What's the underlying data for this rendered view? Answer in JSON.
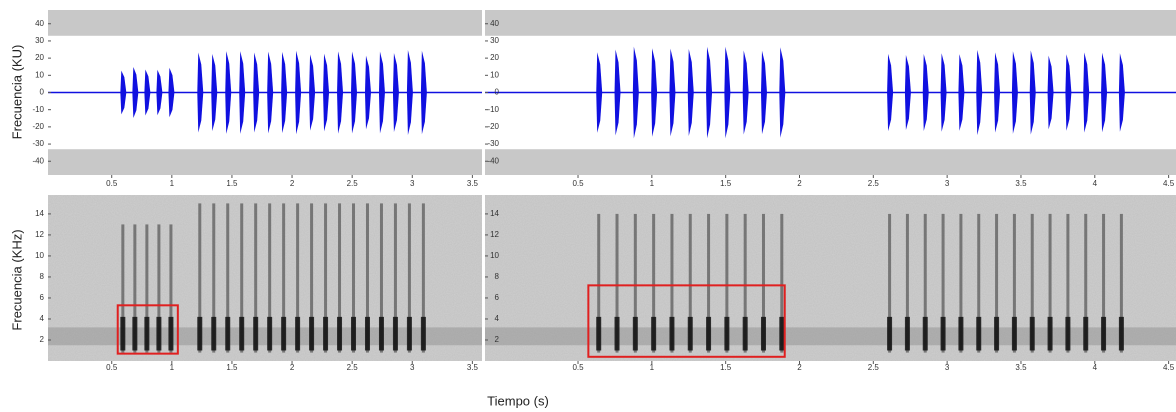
{
  "x_label": "Tiempo (s)",
  "chart_data": [
    {
      "type": "waveform",
      "y_label": "Frecuencia (KU)",
      "xlim": [
        -0.03,
        3.58
      ],
      "xticks": [
        0.5,
        1,
        1.5,
        2,
        2.5,
        3,
        3.5
      ],
      "ylim": [
        -48,
        48
      ],
      "yticks": [
        -40,
        -30,
        -20,
        -10,
        0,
        10,
        20,
        30,
        40
      ],
      "band": [
        33,
        48
      ],
      "color": "#1010e0",
      "pulse_groups": [
        {
          "start": 0.58,
          "end": 0.98,
          "count": 5,
          "amplitude": 15
        },
        {
          "start": 1.22,
          "end": 3.08,
          "count": 17,
          "amplitude": 25
        }
      ]
    },
    {
      "type": "waveform",
      "xlim": [
        -0.13,
        4.55
      ],
      "xticks": [
        0.5,
        1,
        1.5,
        2,
        2.5,
        3,
        3.5,
        4,
        4.5
      ],
      "ylim": [
        -48,
        48
      ],
      "yticks": [
        -40,
        -30,
        -20,
        -10,
        0,
        10,
        20,
        30,
        40
      ],
      "band": [
        33,
        48
      ],
      "color": "#1010e0",
      "pulse_groups": [
        {
          "start": 0.63,
          "end": 1.87,
          "count": 11,
          "amplitude": 27
        },
        {
          "start": 2.6,
          "end": 4.17,
          "count": 14,
          "amplitude": 25
        }
      ]
    },
    {
      "type": "spectrogram",
      "y_label": "Frecuencia (KHz)",
      "xlim": [
        -0.03,
        3.58
      ],
      "xticks": [
        0.5,
        1,
        1.5,
        2,
        2.5,
        3,
        3.5
      ],
      "ylim": [
        0,
        15.8
      ],
      "yticks": [
        2,
        4,
        6,
        8,
        10,
        12,
        14
      ],
      "pulse_groups": [
        {
          "start": 0.58,
          "end": 0.98,
          "count": 5,
          "amplitude": 13
        },
        {
          "start": 1.22,
          "end": 3.08,
          "count": 17,
          "amplitude": 15
        }
      ],
      "highlight": {
        "x": [
          0.55,
          1.05
        ],
        "y": [
          0.7,
          5.3
        ],
        "color": "#e02020"
      }
    },
    {
      "type": "spectrogram",
      "xlim": [
        -0.13,
        4.55
      ],
      "xticks": [
        0.5,
        1,
        1.5,
        2,
        2.5,
        3,
        3.5,
        4,
        4.5
      ],
      "ylim": [
        0,
        15.8
      ],
      "yticks": [
        2,
        4,
        6,
        8,
        10,
        12,
        14
      ],
      "pulse_groups": [
        {
          "start": 0.63,
          "end": 1.87,
          "count": 11,
          "amplitude": 14
        },
        {
          "start": 2.6,
          "end": 4.17,
          "count": 14,
          "amplitude": 14
        }
      ],
      "highlight": {
        "x": [
          0.57,
          1.9
        ],
        "y": [
          0.4,
          7.2
        ],
        "color": "#e02020"
      }
    }
  ]
}
